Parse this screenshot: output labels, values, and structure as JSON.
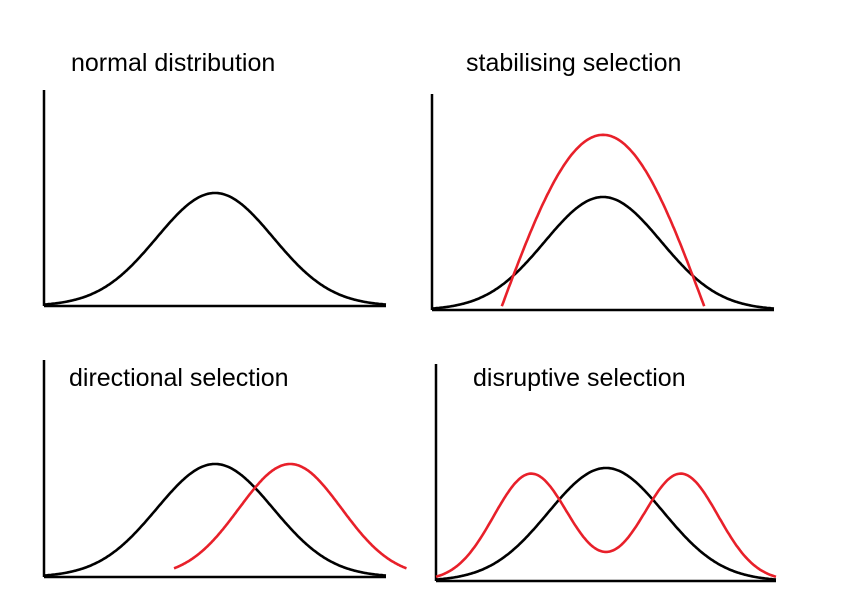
{
  "colors": {
    "axis": "#000000",
    "baseline_curve": "#000000",
    "selected_curve": "#e8202a"
  },
  "panels": [
    {
      "title": "normal distribution",
      "curves": [
        {
          "role": "original",
          "shape": "bell",
          "mean": 0.5,
          "sd": 0.17,
          "height": 1.0
        }
      ]
    },
    {
      "title": "stabilising selection",
      "curves": [
        {
          "role": "original",
          "shape": "bell",
          "mean": 0.5,
          "sd": 0.17,
          "height": 1.0
        },
        {
          "role": "after-selection",
          "shape": "narrow-peak",
          "mean": 0.5,
          "height": 1.55
        }
      ]
    },
    {
      "title": "directional selection",
      "curves": [
        {
          "role": "original",
          "shape": "bell",
          "mean": 0.5,
          "sd": 0.17,
          "height": 1.0
        },
        {
          "role": "after-selection",
          "shape": "bell",
          "mean": 0.72,
          "sd": 0.15,
          "height": 1.0
        }
      ]
    },
    {
      "title": "disruptive selection",
      "curves": [
        {
          "role": "original",
          "shape": "bell",
          "mean": 0.5,
          "sd": 0.17,
          "height": 1.0
        },
        {
          "role": "after-selection",
          "shape": "bimodal",
          "modes": [
            0.28,
            0.72
          ],
          "height": 0.95
        }
      ]
    }
  ]
}
